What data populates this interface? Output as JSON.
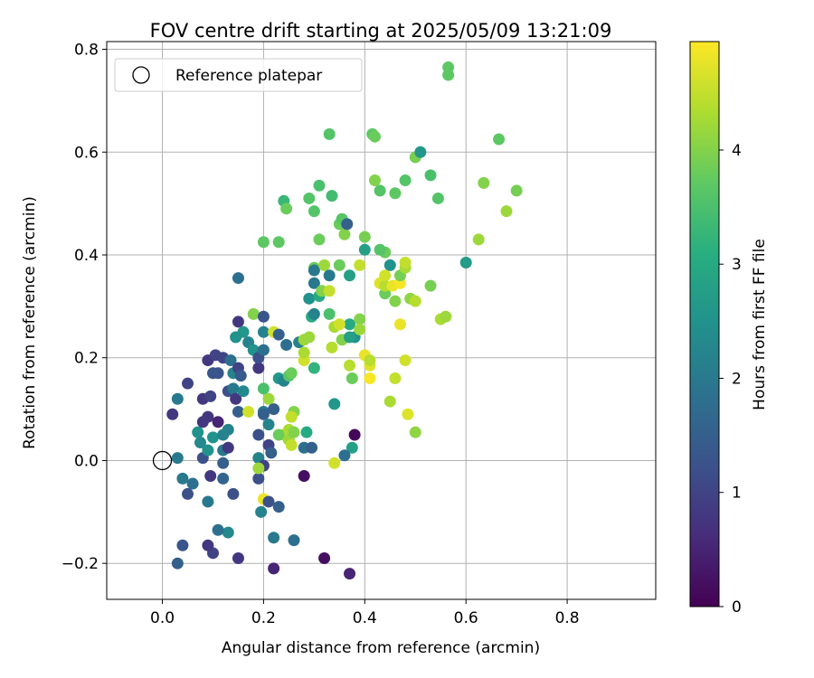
{
  "chart_data": {
    "type": "scatter",
    "title": "FOV centre drift starting at 2025/05/09 13:21:09",
    "xlabel": "Angular distance from reference (arcmin)",
    "ylabel": "Rotation from reference (arcmin)",
    "xlim": [
      -0.11,
      0.975
    ],
    "ylim": [
      -0.27,
      0.815
    ],
    "xticks": [
      0.0,
      0.2,
      0.4,
      0.6,
      0.8
    ],
    "xtick_labels": [
      "0.0",
      "0.2",
      "0.4",
      "0.6",
      "0.8"
    ],
    "yticks": [
      -0.2,
      0.0,
      0.2,
      0.4,
      0.6,
      0.8
    ],
    "ytick_labels": [
      "−0.2",
      "0.0",
      "0.2",
      "0.4",
      "0.6",
      "0.8"
    ],
    "grid": true,
    "legend": {
      "placement": "upper-left",
      "entries": [
        "Reference platepar"
      ]
    },
    "reference_point": {
      "x": 0.0,
      "y": 0.0
    },
    "colorbar": {
      "label": "Hours from first FF file",
      "colormap": "viridis",
      "range": [
        0,
        4.95
      ],
      "ticks": [
        0,
        1,
        2,
        3,
        4
      ],
      "tick_labels": [
        "0",
        "1",
        "2",
        "3",
        "4"
      ]
    },
    "points": [
      [
        0.02,
        0.09,
        0.8
      ],
      [
        0.03,
        0.12,
        2.0
      ],
      [
        0.05,
        0.15,
        1.0
      ],
      [
        0.03,
        0.005,
        2.0
      ],
      [
        0.04,
        -0.035,
        2.0
      ],
      [
        0.05,
        -0.065,
        1.2
      ],
      [
        0.06,
        -0.045,
        1.8
      ],
      [
        0.07,
        0.055,
        2.5
      ],
      [
        0.075,
        0.035,
        2.3
      ],
      [
        0.08,
        0.075,
        0.8
      ],
      [
        0.08,
        0.12,
        0.8
      ],
      [
        0.08,
        0.005,
        1.2
      ],
      [
        0.09,
        0.195,
        0.8
      ],
      [
        0.09,
        0.085,
        0.8
      ],
      [
        0.09,
        0.02,
        2.5
      ],
      [
        0.1,
        0.045,
        2.5
      ],
      [
        0.095,
        -0.03,
        0.8
      ],
      [
        0.09,
        -0.08,
        2.0
      ],
      [
        0.095,
        0.125,
        1.0
      ],
      [
        0.1,
        0.17,
        1.3
      ],
      [
        0.11,
        0.17,
        1.3
      ],
      [
        0.105,
        0.205,
        1.0
      ],
      [
        0.11,
        0.075,
        0.5
      ],
      [
        0.12,
        0.2,
        1.0
      ],
      [
        0.12,
        0.05,
        2.2
      ],
      [
        0.12,
        0.02,
        2.0
      ],
      [
        0.12,
        -0.005,
        1.5
      ],
      [
        0.12,
        -0.035,
        1.6
      ],
      [
        0.13,
        0.135,
        1.2
      ],
      [
        0.13,
        0.06,
        2.2
      ],
      [
        0.13,
        0.025,
        0.8
      ],
      [
        0.135,
        0.195,
        1.8
      ],
      [
        0.14,
        0.14,
        2.0
      ],
      [
        0.14,
        0.17,
        2.2
      ],
      [
        0.145,
        0.12,
        0.8
      ],
      [
        0.15,
        0.18,
        1.0
      ],
      [
        0.15,
        0.095,
        1.5
      ],
      [
        0.155,
        0.165,
        1.4
      ],
      [
        0.15,
        0.27,
        0.8
      ],
      [
        0.15,
        0.355,
        1.8
      ],
      [
        0.16,
        0.135,
        2.3
      ],
      [
        0.16,
        0.25,
        2.6
      ],
      [
        0.145,
        0.24,
        2.5
      ],
      [
        0.17,
        0.095,
        4.6
      ],
      [
        0.17,
        0.23,
        2.2
      ],
      [
        0.18,
        0.285,
        4.0
      ],
      [
        0.18,
        0.215,
        2.5
      ],
      [
        0.19,
        0.18,
        0.8
      ],
      [
        0.19,
        0.2,
        1.2
      ],
      [
        0.2,
        0.215,
        1.8
      ],
      [
        0.2,
        0.25,
        2.2
      ],
      [
        0.2,
        0.28,
        1.3
      ],
      [
        0.2,
        0.14,
        3.5
      ],
      [
        0.21,
        0.12,
        4.2
      ],
      [
        0.21,
        0.07,
        2.2
      ],
      [
        0.21,
        0.03,
        1.0
      ],
      [
        0.215,
        0.015,
        1.5
      ],
      [
        0.2,
        0.095,
        2.0
      ],
      [
        0.2,
        0.09,
        1.5
      ],
      [
        0.19,
        0.05,
        1.2
      ],
      [
        0.19,
        0.005,
        2.2
      ],
      [
        0.2,
        -0.01,
        1.0
      ],
      [
        0.19,
        -0.035,
        1.2
      ],
      [
        0.2,
        -0.075,
        4.8
      ],
      [
        0.19,
        -0.015,
        4.2
      ],
      [
        0.195,
        -0.1,
        2.2
      ],
      [
        0.21,
        -0.08,
        1.2
      ],
      [
        0.22,
        -0.15,
        2.0
      ],
      [
        0.23,
        -0.09,
        1.5
      ],
      [
        0.22,
        0.1,
        1.5
      ],
      [
        0.23,
        0.16,
        2.6
      ],
      [
        0.22,
        0.25,
        4.6
      ],
      [
        0.23,
        0.245,
        1.5
      ],
      [
        0.24,
        0.155,
        2.2
      ],
      [
        0.245,
        0.225,
        1.8
      ],
      [
        0.24,
        0.05,
        4.5
      ],
      [
        0.23,
        0.05,
        3.8
      ],
      [
        0.26,
        0.095,
        4.0
      ],
      [
        0.255,
        0.085,
        4.5
      ],
      [
        0.25,
        0.165,
        3.6
      ],
      [
        0.255,
        0.17,
        3.8
      ],
      [
        0.25,
        0.06,
        4.3
      ],
      [
        0.25,
        0.04,
        4.2
      ],
      [
        0.26,
        0.055,
        4.0
      ],
      [
        0.255,
        0.03,
        4.5
      ],
      [
        0.27,
        0.23,
        2.2
      ],
      [
        0.28,
        0.195,
        4.6
      ],
      [
        0.28,
        0.21,
        4.3
      ],
      [
        0.28,
        0.235,
        4.2
      ],
      [
        0.3,
        0.18,
        3.2
      ],
      [
        0.29,
        0.24,
        4.2
      ],
      [
        0.285,
        0.055,
        3.0
      ],
      [
        0.28,
        0.025,
        1.8
      ],
      [
        0.295,
        0.025,
        1.5
      ],
      [
        0.3,
        0.375,
        3.8
      ],
      [
        0.29,
        0.315,
        2.5
      ],
      [
        0.295,
        0.28,
        3.0
      ],
      [
        0.3,
        0.345,
        2.0
      ],
      [
        0.3,
        0.37,
        2.0
      ],
      [
        0.3,
        0.285,
        2.2
      ],
      [
        0.31,
        0.32,
        3.0
      ],
      [
        0.315,
        0.33,
        4.0
      ],
      [
        0.31,
        0.43,
        3.8
      ],
      [
        0.32,
        0.38,
        4.2
      ],
      [
        0.33,
        0.36,
        2.0
      ],
      [
        0.33,
        0.33,
        4.5
      ],
      [
        0.33,
        0.285,
        3.5
      ],
      [
        0.335,
        0.22,
        4.4
      ],
      [
        0.33,
        0.635,
        3.6
      ],
      [
        0.34,
        0.26,
        4.3
      ],
      [
        0.34,
        0.11,
        2.6
      ],
      [
        0.34,
        -0.005,
        4.6
      ],
      [
        0.35,
        0.38,
        3.8
      ],
      [
        0.35,
        0.46,
        3.8
      ],
      [
        0.355,
        0.47,
        3.6
      ],
      [
        0.355,
        0.235,
        4.0
      ],
      [
        0.36,
        0.44,
        4.0
      ],
      [
        0.365,
        0.46,
        1.5
      ],
      [
        0.37,
        0.265,
        3.0
      ],
      [
        0.37,
        0.36,
        2.8
      ],
      [
        0.37,
        0.185,
        4.4
      ],
      [
        0.375,
        0.16,
        3.8
      ],
      [
        0.38,
        0.24,
        2.5
      ],
      [
        0.39,
        0.275,
        4.0
      ],
      [
        0.39,
        0.255,
        4.2
      ],
      [
        0.39,
        0.38,
        4.5
      ],
      [
        0.4,
        0.205,
        4.8
      ],
      [
        0.4,
        0.41,
        2.8
      ],
      [
        0.41,
        0.16,
        4.9
      ],
      [
        0.41,
        0.185,
        4.7
      ],
      [
        0.415,
        0.635,
        3.7
      ],
      [
        0.42,
        0.545,
        4.0
      ],
      [
        0.43,
        0.525,
        3.6
      ],
      [
        0.43,
        0.345,
        4.7
      ],
      [
        0.44,
        0.325,
        3.8
      ],
      [
        0.44,
        0.405,
        3.8
      ],
      [
        0.44,
        0.34,
        4.4
      ],
      [
        0.45,
        0.38,
        2.5
      ],
      [
        0.455,
        0.34,
        4.8
      ],
      [
        0.46,
        0.31,
        4.0
      ],
      [
        0.46,
        0.16,
        4.5
      ],
      [
        0.47,
        0.265,
        4.8
      ],
      [
        0.47,
        0.345,
        4.9
      ],
      [
        0.47,
        0.36,
        3.9
      ],
      [
        0.48,
        0.375,
        4.3
      ],
      [
        0.48,
        0.385,
        4.5
      ],
      [
        0.48,
        0.195,
        4.6
      ],
      [
        0.485,
        0.09,
        4.7
      ],
      [
        0.49,
        0.315,
        4.1
      ],
      [
        0.5,
        0.59,
        3.9
      ],
      [
        0.5,
        0.055,
        4.1
      ],
      [
        0.51,
        0.6,
        2.6
      ],
      [
        0.53,
        0.555,
        3.5
      ],
      [
        0.53,
        0.34,
        3.9
      ],
      [
        0.545,
        0.51,
        3.6
      ],
      [
        0.55,
        0.275,
        4.3
      ],
      [
        0.6,
        0.385,
        2.7
      ],
      [
        0.565,
        0.765,
        3.7
      ],
      [
        0.565,
        0.75,
        3.7
      ],
      [
        0.625,
        0.43,
        4.2
      ],
      [
        0.635,
        0.54,
        4.0
      ],
      [
        0.665,
        0.625,
        3.7
      ],
      [
        0.68,
        0.485,
        4.2
      ],
      [
        0.7,
        0.525,
        3.9
      ],
      [
        0.37,
        0.24,
        2.8
      ],
      [
        0.38,
        0.05,
        0.1
      ],
      [
        0.375,
        0.025,
        2.8
      ],
      [
        0.36,
        0.01,
        1.8
      ],
      [
        0.32,
        -0.19,
        0.2
      ],
      [
        0.37,
        -0.22,
        0.5
      ],
      [
        0.28,
        -0.03,
        0.2
      ],
      [
        0.26,
        -0.155,
        1.8
      ],
      [
        0.22,
        -0.21,
        0.5
      ],
      [
        0.15,
        -0.19,
        0.8
      ],
      [
        0.14,
        -0.065,
        1.2
      ],
      [
        0.13,
        -0.14,
        2.3
      ],
      [
        0.11,
        -0.135,
        1.8
      ],
      [
        0.1,
        -0.18,
        1.0
      ],
      [
        0.09,
        -0.165,
        0.8
      ],
      [
        0.04,
        -0.165,
        1.3
      ],
      [
        0.03,
        -0.2,
        1.5
      ],
      [
        0.44,
        0.36,
        4.6
      ],
      [
        0.43,
        0.41,
        3.6
      ],
      [
        0.24,
        0.505,
        3.3
      ],
      [
        0.245,
        0.49,
        3.8
      ],
      [
        0.29,
        0.51,
        3.6
      ],
      [
        0.31,
        0.535,
        3.5
      ],
      [
        0.335,
        0.515,
        3.4
      ],
      [
        0.3,
        0.485,
        3.6
      ],
      [
        0.2,
        0.425,
        3.7
      ],
      [
        0.23,
        0.425,
        3.7
      ],
      [
        0.4,
        0.435,
        3.9
      ],
      [
        0.46,
        0.52,
        3.7
      ],
      [
        0.48,
        0.545,
        3.6
      ],
      [
        0.42,
        0.63,
        3.8
      ],
      [
        0.56,
        0.28,
        4.2
      ],
      [
        0.5,
        0.31,
        4.4
      ],
      [
        0.45,
        0.115,
        4.3
      ],
      [
        0.41,
        0.195,
        4.4
      ],
      [
        0.35,
        0.265,
        4.6
      ]
    ]
  }
}
